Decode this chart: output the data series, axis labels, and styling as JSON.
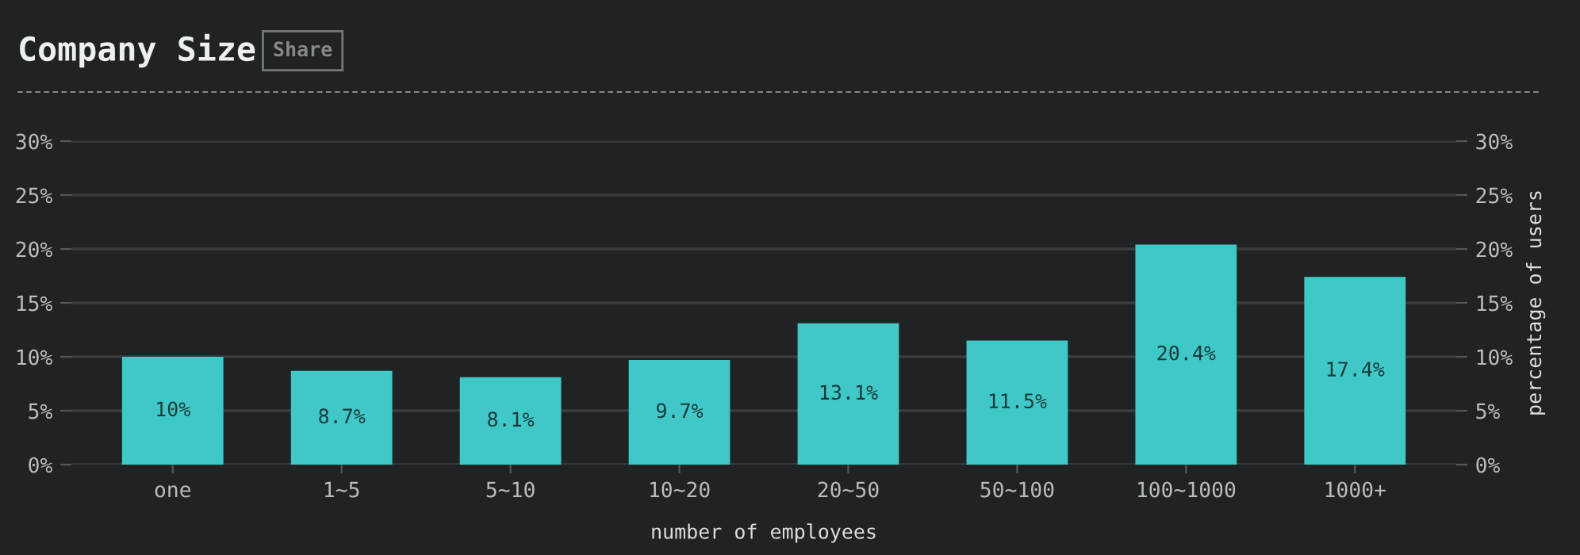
{
  "chart_data": {
    "type": "bar",
    "title": "Company Size",
    "annotations": [
      "Share"
    ],
    "xlabel": "number of employees",
    "y2label": "percentage of users",
    "categories": [
      "one",
      "1~5",
      "5~10",
      "10~20",
      "20~50",
      "50~100",
      "100~1000",
      "1000+"
    ],
    "values": [
      10,
      8.7,
      8.1,
      9.7,
      13.1,
      11.5,
      20.4,
      17.4
    ],
    "value_labels": [
      "10%",
      "8.7%",
      "8.1%",
      "9.7%",
      "13.1%",
      "11.5%",
      "20.4%",
      "17.4%"
    ],
    "color": "#40c8c8",
    "ylim": [
      0,
      30
    ],
    "yticks": [
      {
        "value": 0,
        "label": "0%"
      },
      {
        "value": 5,
        "label": "5%"
      },
      {
        "value": 10,
        "label": "10%"
      },
      {
        "value": 15,
        "label": "15%"
      },
      {
        "value": 20,
        "label": "20%"
      },
      {
        "value": 25,
        "label": "25%"
      },
      {
        "value": 30,
        "label": "30%"
      }
    ],
    "y2lim": [
      0,
      30
    ],
    "y2ticks": [
      {
        "value": 0,
        "label": "0%"
      },
      {
        "value": 5,
        "label": "5%"
      },
      {
        "value": 10,
        "label": "10%"
      },
      {
        "value": 15,
        "label": "15%"
      },
      {
        "value": 20,
        "label": "20%"
      },
      {
        "value": 25,
        "label": "25%"
      },
      {
        "value": 30,
        "label": "30%"
      }
    ],
    "grid": "y",
    "legend": false
  }
}
